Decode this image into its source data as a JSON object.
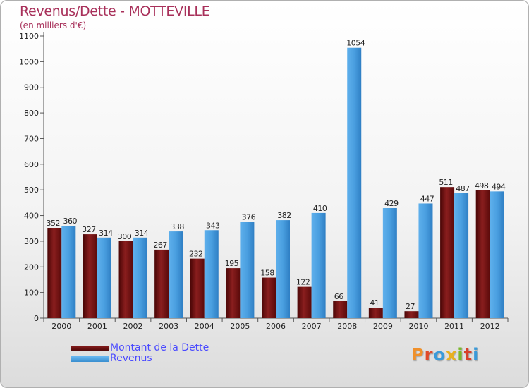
{
  "header": {
    "title": "Revenus/Dette - MOTTEVILLE",
    "subtitle": "(en milliers d'€)"
  },
  "legend": {
    "items": [
      {
        "label": "Montant de la Dette",
        "color": "#7a1414"
      },
      {
        "label": "Revenus",
        "color": "#4a9fe0"
      }
    ]
  },
  "logo": {
    "text": "Proxiti"
  },
  "colors": {
    "title": "#a8305a",
    "dette": "#7a1414",
    "revenus": "#4a9fe0",
    "axis": "#333333"
  },
  "chart_data": {
    "type": "bar",
    "title": "Revenus/Dette - MOTTEVILLE",
    "ylabel": "(en milliers d'€)",
    "categories": [
      "2000",
      "2001",
      "2002",
      "2003",
      "2004",
      "2005",
      "2006",
      "2007",
      "2008",
      "2009",
      "2010",
      "2011",
      "2012"
    ],
    "series": [
      {
        "name": "Montant de la Dette",
        "values": [
          352,
          327,
          300,
          267,
          232,
          195,
          158,
          122,
          66,
          41,
          27,
          511,
          498
        ]
      },
      {
        "name": "Revenus",
        "values": [
          360,
          314,
          314,
          338,
          343,
          376,
          382,
          410,
          1054,
          429,
          447,
          487,
          494
        ]
      }
    ],
    "ylim": [
      0,
      1100
    ],
    "yticks": [
      0,
      100,
      200,
      300,
      400,
      500,
      600,
      700,
      800,
      900,
      1000,
      1100
    ],
    "grid": false,
    "legend_position": "bottom-left"
  }
}
